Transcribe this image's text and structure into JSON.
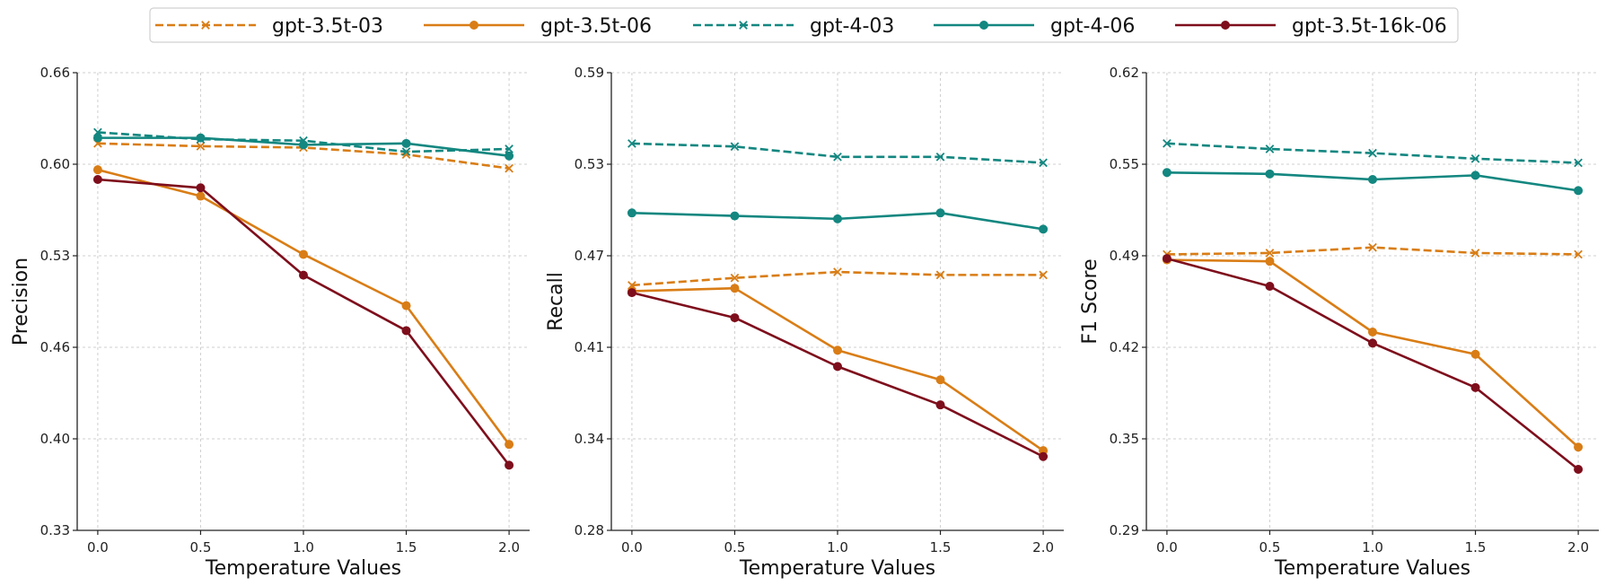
{
  "chart_data": [
    {
      "type": "line",
      "title": "",
      "xlabel": "Temperature Values",
      "ylabel": "Precision",
      "x": [
        0.0,
        0.5,
        1.0,
        1.5,
        2.0
      ],
      "x_ticks": [
        "0.0",
        "0.5",
        "1.0",
        "1.5",
        "2.0"
      ],
      "ylim": [
        0.33,
        0.66
      ],
      "y_ticks": [
        "0.33",
        "0.40",
        "0.46",
        "0.53",
        "0.60",
        "0.66"
      ],
      "grid": true,
      "series": [
        {
          "name": "gpt-3.5t-03",
          "values": [
            0.609,
            0.607,
            0.606,
            0.601,
            0.591
          ]
        },
        {
          "name": "gpt-3.5t-06",
          "values": [
            0.59,
            0.571,
            0.529,
            0.492,
            0.392
          ]
        },
        {
          "name": "gpt-4-03",
          "values": [
            0.617,
            0.612,
            0.611,
            0.603,
            0.605
          ]
        },
        {
          "name": "gpt-4-06",
          "values": [
            0.613,
            0.613,
            0.608,
            0.609,
            0.6
          ]
        },
        {
          "name": "gpt-3.5t-16k-06",
          "values": [
            0.583,
            0.577,
            0.514,
            0.474,
            0.377
          ]
        }
      ]
    },
    {
      "type": "line",
      "title": "",
      "xlabel": "Temperature Values",
      "ylabel": "Recall",
      "x": [
        0.0,
        0.5,
        1.0,
        1.5,
        2.0
      ],
      "x_ticks": [
        "0.0",
        "0.5",
        "1.0",
        "1.5",
        "2.0"
      ],
      "ylim": [
        0.28,
        0.59
      ],
      "y_ticks": [
        "0.28",
        "0.34",
        "0.41",
        "0.47",
        "0.53",
        "0.59"
      ],
      "grid": true,
      "series": [
        {
          "name": "gpt-3.5t-03",
          "values": [
            0.446,
            0.451,
            0.455,
            0.453,
            0.453
          ]
        },
        {
          "name": "gpt-3.5t-06",
          "values": [
            0.442,
            0.444,
            0.402,
            0.382,
            0.334
          ]
        },
        {
          "name": "gpt-4-03",
          "values": [
            0.542,
            0.54,
            0.533,
            0.533,
            0.529
          ]
        },
        {
          "name": "gpt-4-06",
          "values": [
            0.495,
            0.493,
            0.491,
            0.495,
            0.484
          ]
        },
        {
          "name": "gpt-3.5t-16k-06",
          "values": [
            0.441,
            0.424,
            0.391,
            0.365,
            0.33
          ]
        }
      ]
    },
    {
      "type": "line",
      "title": "",
      "xlabel": "Temperature Values",
      "ylabel": "F1 Score",
      "x": [
        0.0,
        0.5,
        1.0,
        1.5,
        2.0
      ],
      "x_ticks": [
        "0.0",
        "0.5",
        "1.0",
        "1.5",
        "2.0"
      ],
      "ylim": [
        0.29,
        0.62
      ],
      "y_ticks": [
        "0.29",
        "0.35",
        "0.42",
        "0.49",
        "0.55",
        "0.62"
      ],
      "grid": true,
      "series": [
        {
          "name": "gpt-3.5t-03",
          "values": [
            0.489,
            0.49,
            0.494,
            0.49,
            0.489
          ]
        },
        {
          "name": "gpt-3.5t-06",
          "values": [
            0.485,
            0.484,
            0.433,
            0.417,
            0.35
          ]
        },
        {
          "name": "gpt-4-03",
          "values": [
            0.569,
            0.565,
            0.562,
            0.558,
            0.555
          ]
        },
        {
          "name": "gpt-4-06",
          "values": [
            0.548,
            0.547,
            0.543,
            0.546,
            0.535
          ]
        },
        {
          "name": "gpt-3.5t-16k-06",
          "values": [
            0.486,
            0.466,
            0.425,
            0.393,
            0.334
          ]
        }
      ]
    }
  ],
  "legend": {
    "placement": "top-center",
    "entries": [
      {
        "name": "gpt-3.5t-03",
        "color": "#d97d16",
        "style": "dashed",
        "marker": "x"
      },
      {
        "name": "gpt-3.5t-06",
        "color": "#d97d16",
        "style": "solid",
        "marker": "o"
      },
      {
        "name": "gpt-4-03",
        "color": "#138780",
        "style": "dashed",
        "marker": "x"
      },
      {
        "name": "gpt-4-06",
        "color": "#138780",
        "style": "solid",
        "marker": "o"
      },
      {
        "name": "gpt-3.5t-16k-06",
        "color": "#7e0e1c",
        "style": "solid",
        "marker": "o"
      }
    ]
  }
}
